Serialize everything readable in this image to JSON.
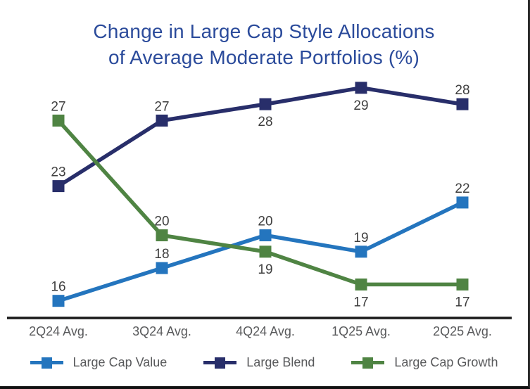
{
  "title": {
    "line1": "Change in Large Cap Style Allocations",
    "line2": "of Average Moderate Portfolios (%)"
  },
  "colors": {
    "title_text": "#2b4b9b",
    "axis_line": "#1a1a1a",
    "axis_label_text": "#58595b",
    "data_label_text": "#3f3f3f",
    "background": "#ffffff",
    "frame_border": "#111111"
  },
  "chart_data": {
    "type": "line",
    "title": "Change in Large Cap Style Allocations of Average Moderate Portfolios (%)",
    "categories": [
      "2Q24 Avg.",
      "3Q24 Avg.",
      "4Q24 Avg.",
      "1Q25 Avg.",
      "2Q25 Avg."
    ],
    "series": [
      {
        "name": "Large Cap Value",
        "color": "#2475be",
        "marker": "square",
        "values": [
          16,
          18,
          20,
          19,
          22
        ],
        "label_positions": [
          "above",
          "above",
          "above",
          "above",
          "above"
        ]
      },
      {
        "name": "Large Blend",
        "color": "#282e6a",
        "marker": "square",
        "values": [
          23,
          27,
          28,
          29,
          28
        ],
        "label_positions": [
          "above",
          "above",
          "below",
          "below",
          "above"
        ]
      },
      {
        "name": "Large Cap Growth",
        "color": "#4f8443",
        "marker": "square",
        "values": [
          27,
          20,
          19,
          17,
          17
        ],
        "label_positions": [
          "above",
          "above",
          "below",
          "below",
          "below"
        ]
      }
    ],
    "xlabel": "",
    "ylabel": "",
    "ylim": [
      15,
      31
    ],
    "grid": false,
    "data_labels": true,
    "legend_position": "bottom"
  }
}
